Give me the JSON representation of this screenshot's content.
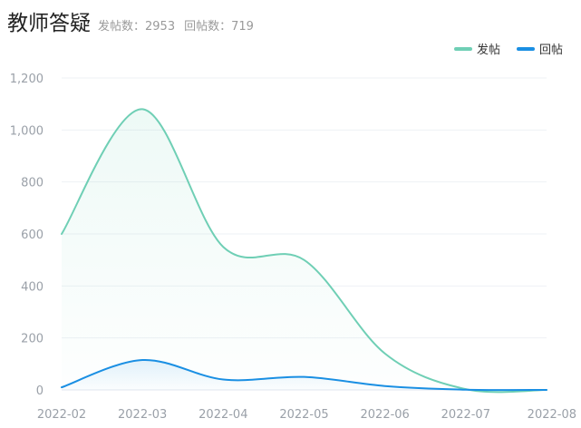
{
  "header": {
    "title": "教师答疑",
    "posts_label": "发帖数：",
    "posts_count": "2953",
    "replies_label": "回帖数：",
    "replies_count": "719"
  },
  "chart_data": {
    "type": "area",
    "categories": [
      "2022-02",
      "2022-03",
      "2022-04",
      "2022-05",
      "2022-06",
      "2022-07",
      "2022-08"
    ],
    "series": [
      {
        "name": "发帖",
        "color": "#6fcfb5",
        "values": [
          600,
          1080,
          550,
          500,
          140,
          3,
          0
        ]
      },
      {
        "name": "回帖",
        "color": "#1a8fe3",
        "values": [
          10,
          115,
          40,
          50,
          15,
          1,
          0
        ]
      }
    ],
    "ylim": [
      0,
      1200
    ],
    "yticks": [
      "0",
      "200",
      "400",
      "600",
      "800",
      "1,000",
      "1,200"
    ],
    "grid": true,
    "legend_position": "top-right"
  }
}
